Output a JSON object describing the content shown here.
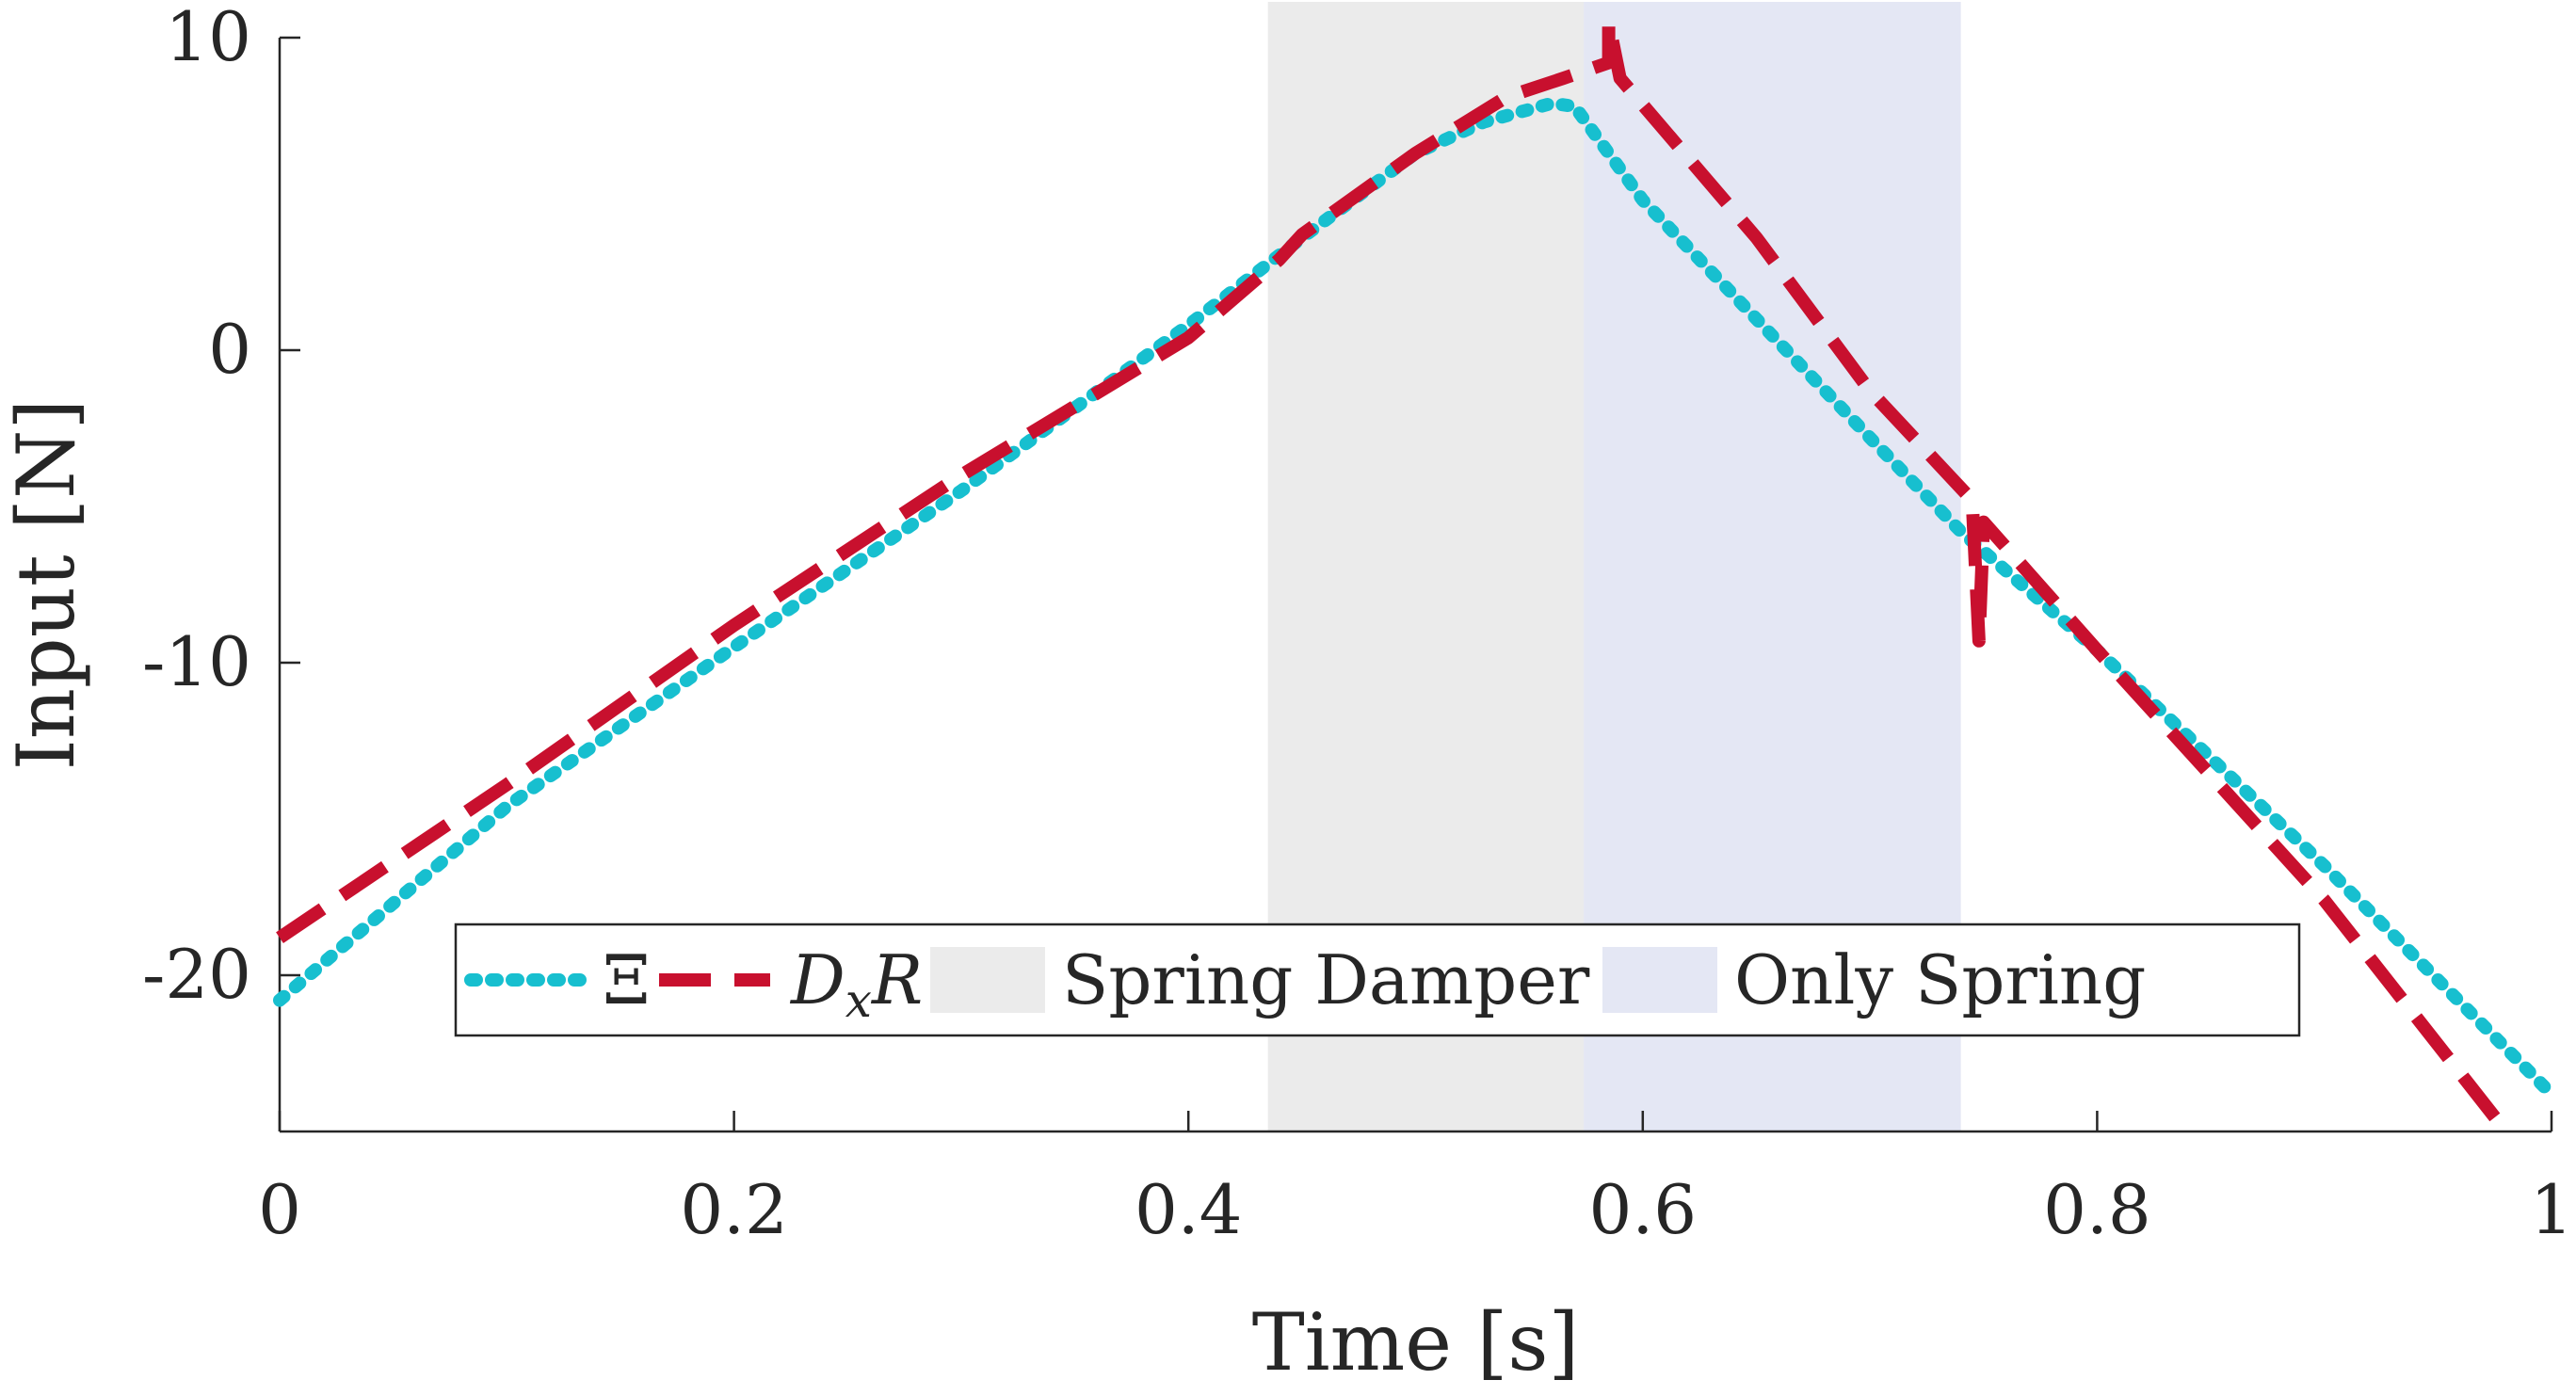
{
  "chart_data": {
    "type": "line",
    "xlabel": "Time [s]",
    "ylabel": "Input [N]",
    "xlim": [
      0,
      1
    ],
    "ylim": [
      -25,
      10
    ],
    "x_ticks": [
      0,
      0.2,
      0.4,
      0.6,
      0.8,
      1
    ],
    "x_tick_labels": [
      "0",
      "0.2",
      "0.4",
      "0.6",
      "0.8",
      "1"
    ],
    "y_ticks": [
      -20,
      -10,
      0,
      10
    ],
    "y_tick_labels": [
      "-20",
      "-10",
      "0",
      "10"
    ],
    "grid": false,
    "legend_position": "bottom-center",
    "regions": [
      {
        "name": "Spring Damper",
        "x_start": 0.435,
        "x_end": 0.574,
        "color": "#ebebeb"
      },
      {
        "name": "Only Spring",
        "x_start": 0.574,
        "x_end": 0.74,
        "color": "#e4e7f4"
      }
    ],
    "series": [
      {
        "name": "Ξ",
        "style": "dotted",
        "color": "#17bfcf",
        "points": [
          [
            0,
            -20.8
          ],
          [
            0.1,
            -14.6
          ],
          [
            0.2,
            -9.5
          ],
          [
            0.3,
            -4.5
          ],
          [
            0.4,
            0.8
          ],
          [
            0.45,
            3.6
          ],
          [
            0.5,
            6.3
          ],
          [
            0.53,
            7.3
          ],
          [
            0.56,
            7.9
          ],
          [
            0.57,
            7.8
          ],
          [
            0.6,
            4.8
          ],
          [
            0.7,
            -2.8
          ],
          [
            0.74,
            -5.8
          ],
          [
            0.8,
            -9.6
          ],
          [
            0.9,
            -16.5
          ],
          [
            1.0,
            -23.8
          ]
        ]
      },
      {
        "name": "D_x R",
        "style": "dashed",
        "color": "#c8102e",
        "points": [
          [
            0,
            -18.8
          ],
          [
            0.1,
            -13.9
          ],
          [
            0.2,
            -8.8
          ],
          [
            0.3,
            -4.0
          ],
          [
            0.4,
            0.4
          ],
          [
            0.44,
            2.9
          ],
          [
            0.45,
            3.7
          ],
          [
            0.5,
            6.3
          ],
          [
            0.54,
            8.1
          ],
          [
            0.565,
            8.7
          ],
          [
            0.585,
            9.2
          ],
          [
            0.585,
            10.5
          ],
          [
            0.585,
            10.5
          ],
          [
            0.59,
            8.7
          ],
          [
            0.65,
            3.6
          ],
          [
            0.7,
            -1.3
          ],
          [
            0.745,
            -4.8
          ],
          [
            0.748,
            -9.3
          ],
          [
            0.75,
            -5.5
          ],
          [
            0.8,
            -9.6
          ],
          [
            0.9,
            -17.6
          ],
          [
            0.98,
            -25.0
          ]
        ]
      }
    ]
  },
  "legend": {
    "entries": [
      {
        "label": "Ξ",
        "kind": "line",
        "series": 0
      },
      {
        "label": "D_x R",
        "kind": "line",
        "series": 1
      },
      {
        "label": "Spring Damper",
        "kind": "patch",
        "region": 0
      },
      {
        "label": "Only Spring",
        "kind": "patch",
        "region": 1
      }
    ]
  }
}
